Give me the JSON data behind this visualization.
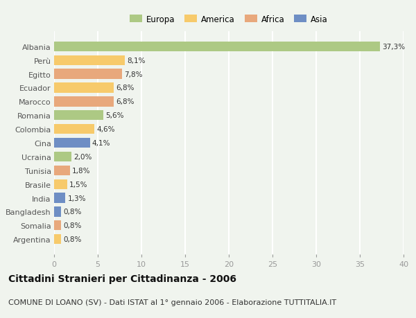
{
  "categories": [
    "Albania",
    "Perù",
    "Egitto",
    "Ecuador",
    "Marocco",
    "Romania",
    "Colombia",
    "Cina",
    "Ucraina",
    "Tunisia",
    "Brasile",
    "India",
    "Bangladesh",
    "Somalia",
    "Argentina"
  ],
  "values": [
    37.3,
    8.1,
    7.8,
    6.8,
    6.8,
    5.6,
    4.6,
    4.1,
    2.0,
    1.8,
    1.5,
    1.3,
    0.8,
    0.8,
    0.8
  ],
  "labels": [
    "37,3%",
    "8,1%",
    "7,8%",
    "6,8%",
    "6,8%",
    "5,6%",
    "4,6%",
    "4,1%",
    "2,0%",
    "1,8%",
    "1,5%",
    "1,3%",
    "0,8%",
    "0,8%",
    "0,8%"
  ],
  "colors": [
    "#adc984",
    "#f7ca6b",
    "#e8a87c",
    "#f7ca6b",
    "#e8a87c",
    "#adc984",
    "#f7ca6b",
    "#6e8ec4",
    "#adc984",
    "#e8a87c",
    "#f7ca6b",
    "#6e8ec4",
    "#6e8ec4",
    "#e8a87c",
    "#f7ca6b"
  ],
  "legend_labels": [
    "Europa",
    "America",
    "Africa",
    "Asia"
  ],
  "legend_colors": [
    "#adc984",
    "#f7ca6b",
    "#e8a87c",
    "#6e8ec4"
  ],
  "title": "Cittadini Stranieri per Cittadinanza - 2006",
  "subtitle": "COMUNE DI LOANO (SV) - Dati ISTAT al 1° gennaio 2006 - Elaborazione TUTTITALIA.IT",
  "xlim": [
    0,
    40
  ],
  "xticks": [
    0,
    5,
    10,
    15,
    20,
    25,
    30,
    35,
    40
  ],
  "background_color": "#f0f4ee",
  "plot_background": "#f0f4ee",
  "grid_color": "#ffffff",
  "title_fontsize": 10,
  "subtitle_fontsize": 8,
  "bar_height": 0.72
}
